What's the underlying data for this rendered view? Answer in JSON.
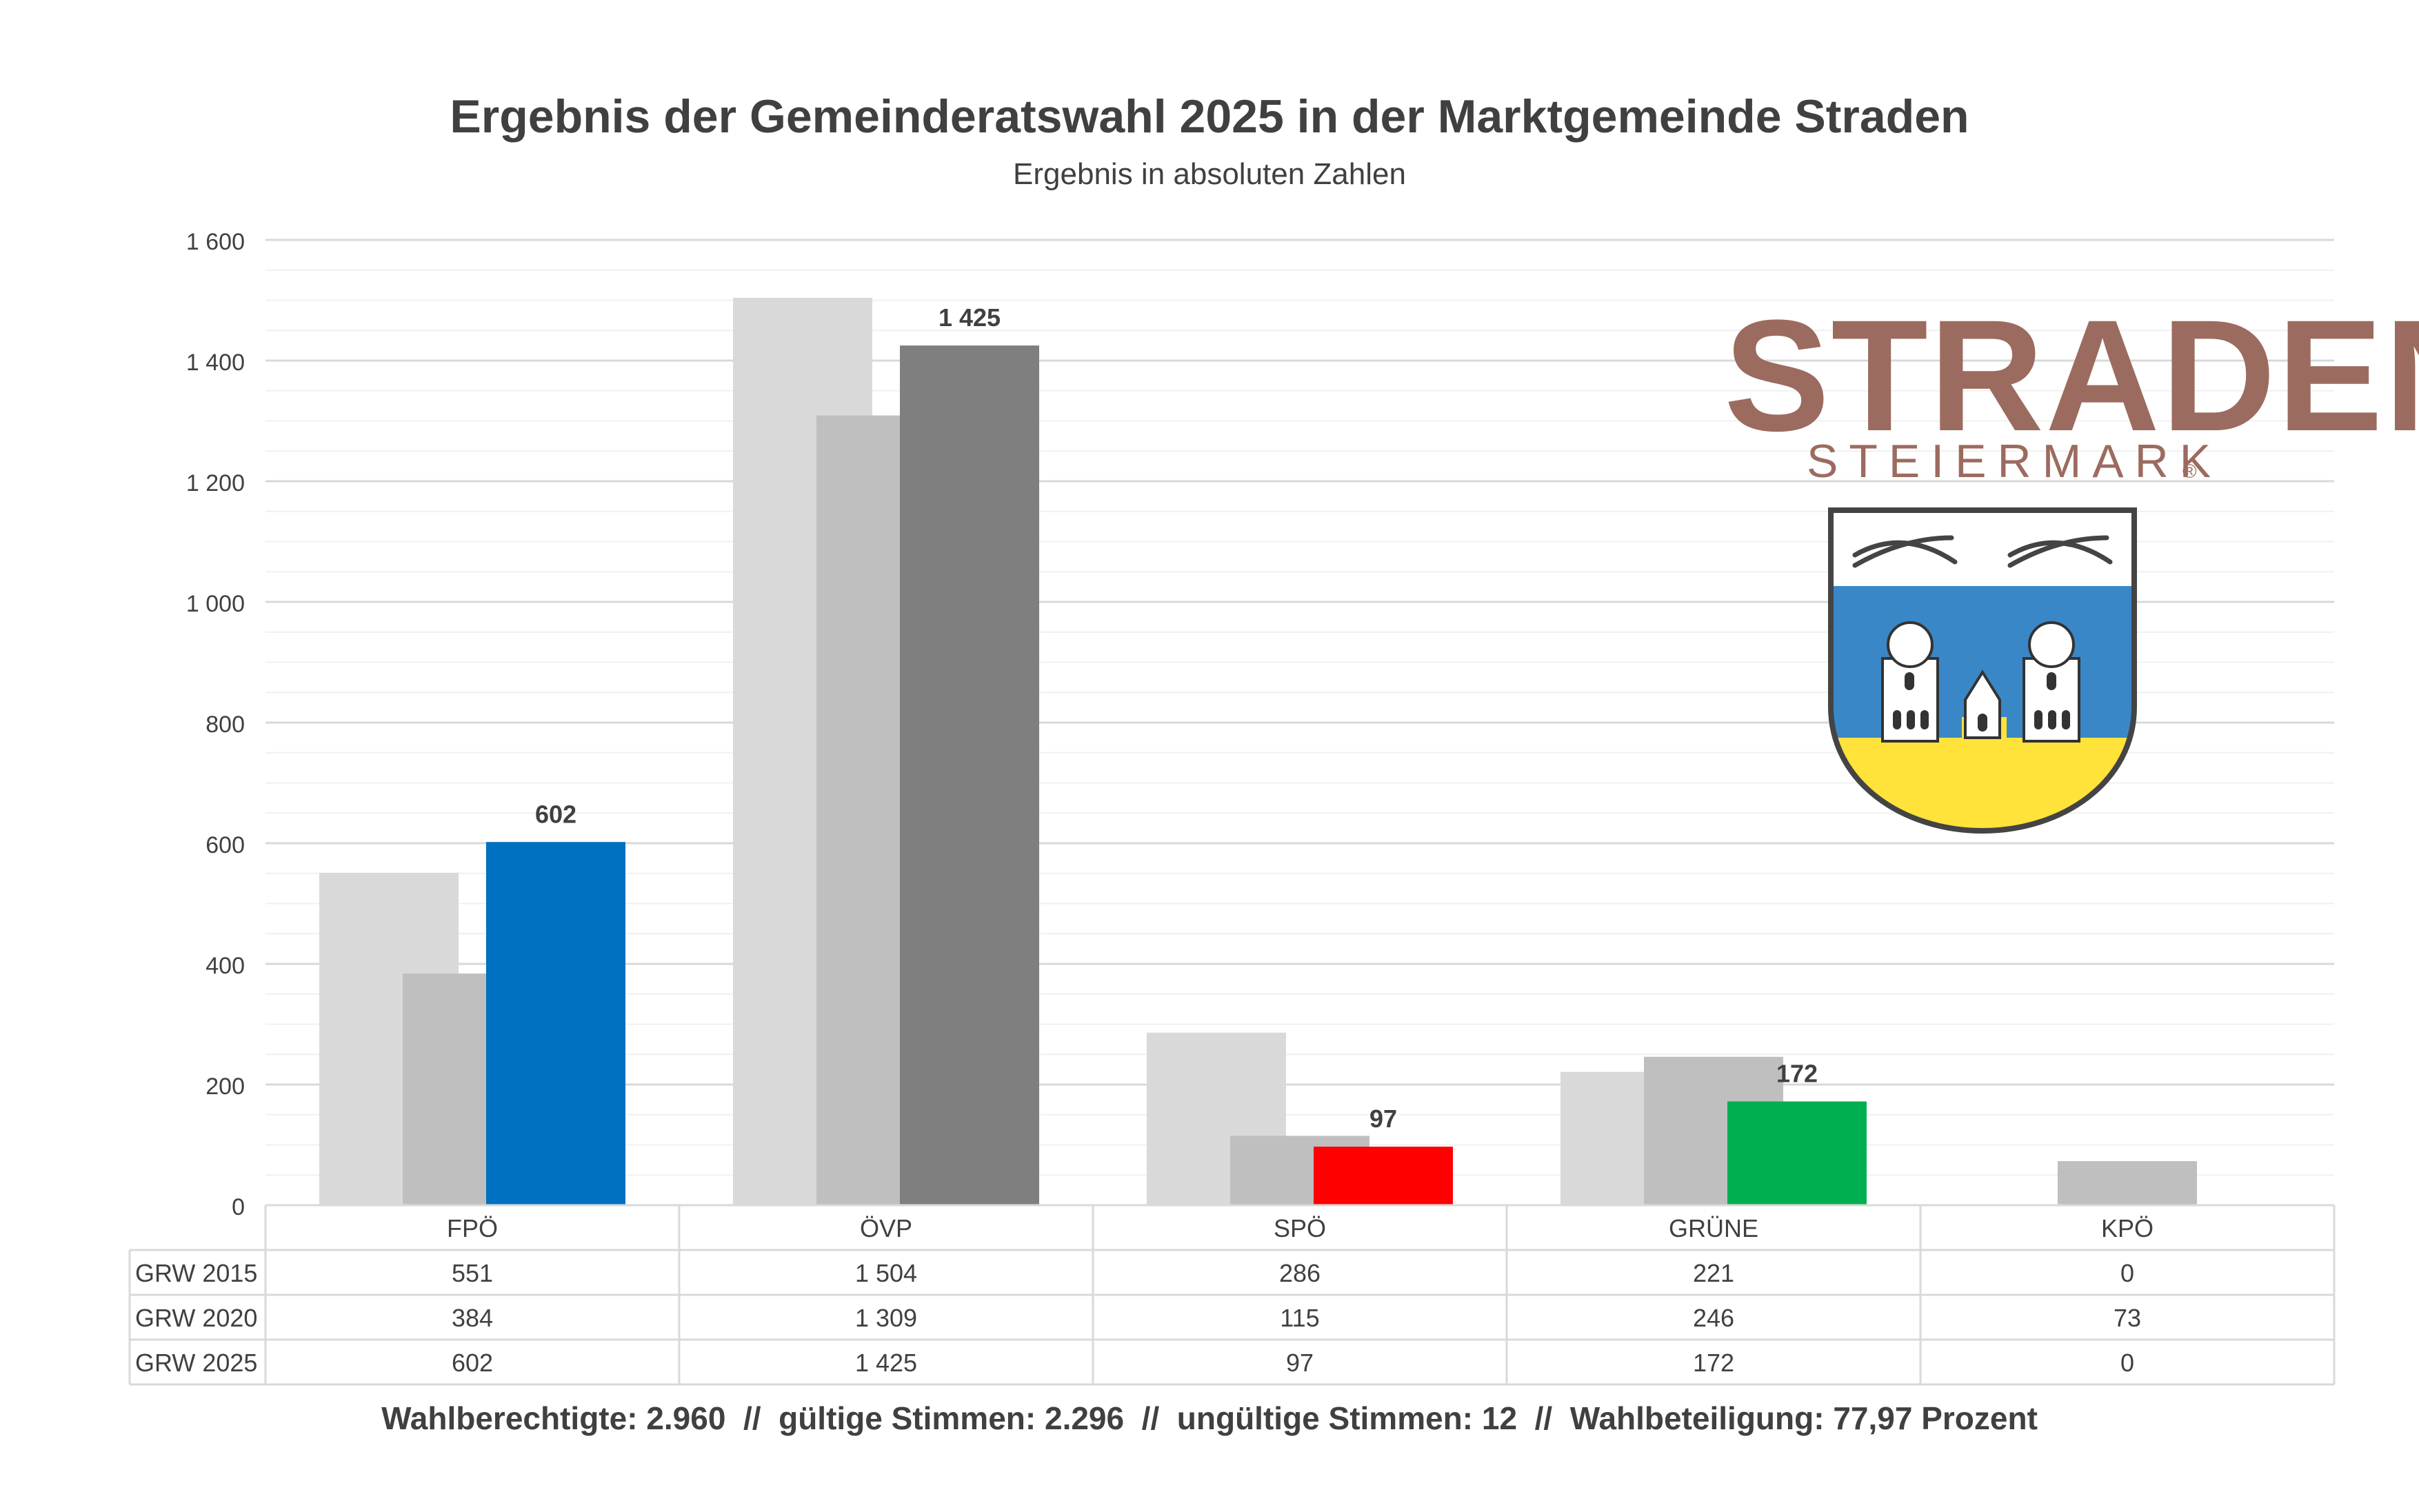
{
  "chart_data": {
    "type": "bar",
    "title": "Ergebnis der Gemeinderatswahl 2025 in der Marktgemeinde Straden",
    "subtitle": "Ergebnis in absoluten Zahlen",
    "categories": [
      "FPÖ",
      "ÖVP",
      "SPÖ",
      "GRÜNE",
      "KPÖ"
    ],
    "series": [
      {
        "name": "GRW 2015",
        "values": [
          551,
          1504,
          286,
          221,
          0
        ]
      },
      {
        "name": "GRW 2020",
        "values": [
          384,
          1309,
          115,
          246,
          73
        ]
      },
      {
        "name": "GRW 2025",
        "values": [
          602,
          1425,
          97,
          172,
          0
        ]
      }
    ],
    "series_colors": [
      "#d9d9d9",
      "#bfbfbf"
    ],
    "party_colors_2025": [
      "#0070c0",
      "#7f7f7f",
      "#ff0000",
      "#00b050",
      "#7f7f7f"
    ],
    "data_labels_2025": [
      "602",
      "1 425",
      "97",
      "172",
      ""
    ],
    "table_values": [
      [
        "551",
        "1 504",
        "286",
        "221",
        "0"
      ],
      [
        "384",
        "1 309",
        "115",
        "246",
        "73"
      ],
      [
        "602",
        "1 425",
        "97",
        "172",
        "0"
      ]
    ],
    "yticks": [
      "0",
      "200",
      "400",
      "600",
      "800",
      "1 000",
      "1 200",
      "1 400",
      "1 600"
    ],
    "ylim": [
      0,
      1600
    ],
    "grid": true,
    "legend": "data table below chart"
  },
  "footer": "Wahlberechtigte: 2.960  //  gültige Stimmen: 2.296  //  ungültige Stimmen: 12  //  Wahlbeteiligung: 77,97 Prozent",
  "logo": {
    "wordmark": "STRADEN",
    "sub": "STEIERMARK",
    "registered": "®",
    "color": "#9c6b5f"
  }
}
